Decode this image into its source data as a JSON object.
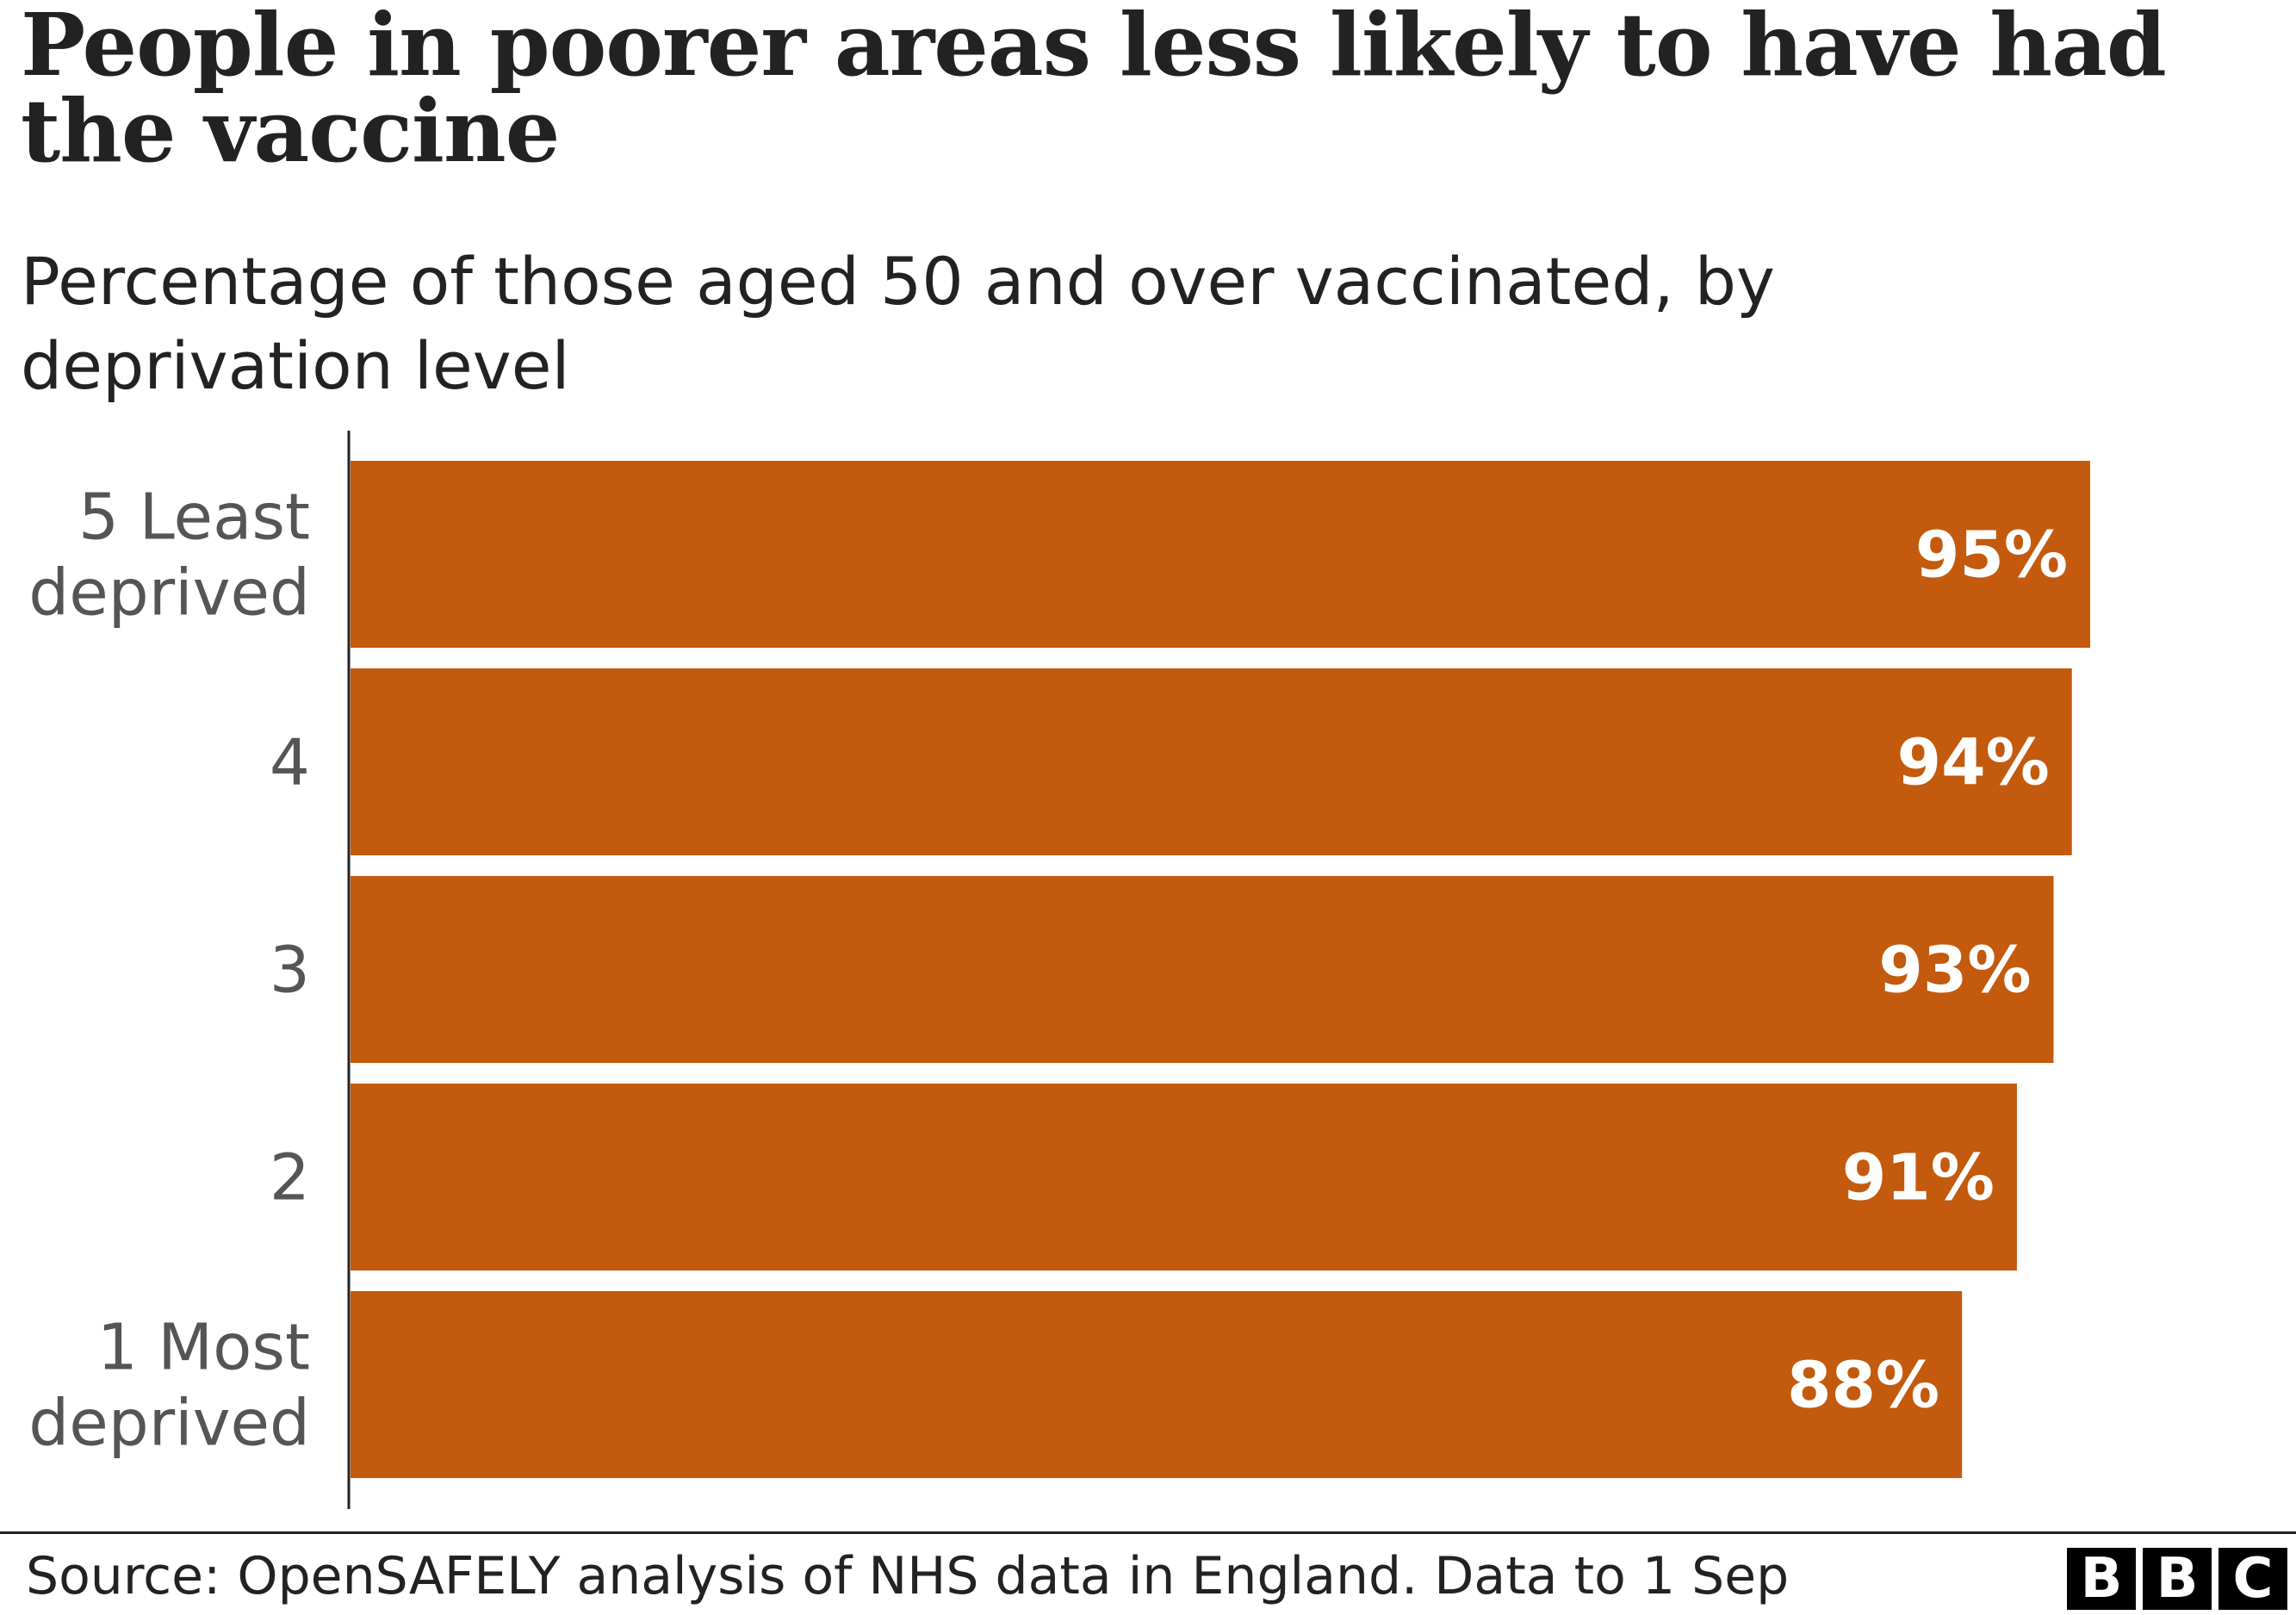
{
  "chart_data": {
    "type": "bar",
    "orientation": "horizontal",
    "title": "People in poorer areas less likely to have had the vaccine",
    "subtitle": "Percentage of those aged 50 and over vaccinated, by deprivation level",
    "categories": [
      [
        "5 Least",
        "deprived"
      ],
      [
        "4"
      ],
      [
        "3"
      ],
      [
        "2"
      ],
      [
        "1 Most",
        "deprived"
      ]
    ],
    "values": [
      95,
      94,
      93,
      91,
      88
    ],
    "value_labels": [
      "95%",
      "94%",
      "93%",
      "91%",
      "88%"
    ],
    "bar_color": "#c35a0e",
    "grid": false
  },
  "footer": {
    "source": "Source: OpenSAFELY analysis of NHS data in England. Data to 1 Sep",
    "logo": [
      "B",
      "B",
      "C"
    ]
  }
}
